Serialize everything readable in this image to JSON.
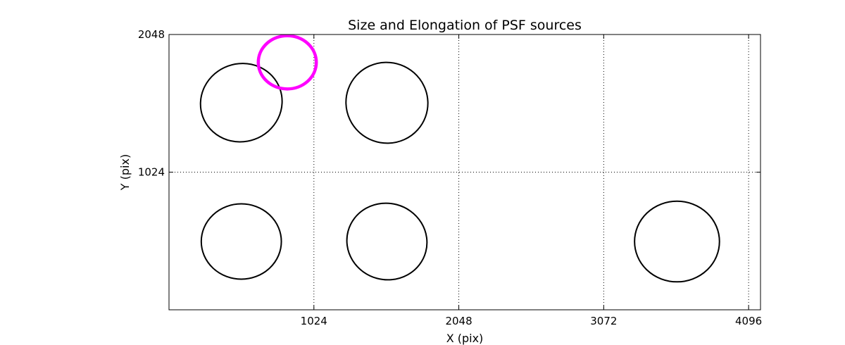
{
  "chart_data": {
    "type": "scatter",
    "title": "Size and Elongation of PSF sources",
    "xlabel": "X (pix)",
    "ylabel": "Y (pix)",
    "xlim": [
      0,
      4180
    ],
    "ylim": [
      0,
      2048
    ],
    "x_ticks": [
      1024,
      2048,
      3072,
      4096
    ],
    "x_tick_labels": [
      "1024",
      "2048",
      "3072",
      "4096"
    ],
    "y_ticks": [
      1024,
      2048
    ],
    "y_tick_labels": [
      "1024",
      "2048"
    ],
    "grid": true,
    "ellipses": [
      {
        "x": 511,
        "y": 1541,
        "rx": 290,
        "ry": 290,
        "angle": -20,
        "color": "#000000"
      },
      {
        "x": 1540,
        "y": 1540,
        "rx": 290,
        "ry": 300,
        "angle": 20,
        "color": "#000000"
      },
      {
        "x": 511,
        "y": 508,
        "rx": 283,
        "ry": 280,
        "angle": 0,
        "color": "#000000"
      },
      {
        "x": 1540,
        "y": 508,
        "rx": 284,
        "ry": 284,
        "angle": 15,
        "color": "#000000"
      },
      {
        "x": 3590,
        "y": 508,
        "rx": 300,
        "ry": 300,
        "angle": 0,
        "color": "#000000"
      },
      {
        "x": 836,
        "y": 1841,
        "rx": 205,
        "ry": 198,
        "angle": 0,
        "color": "#ff00ff",
        "reference": true
      }
    ]
  }
}
